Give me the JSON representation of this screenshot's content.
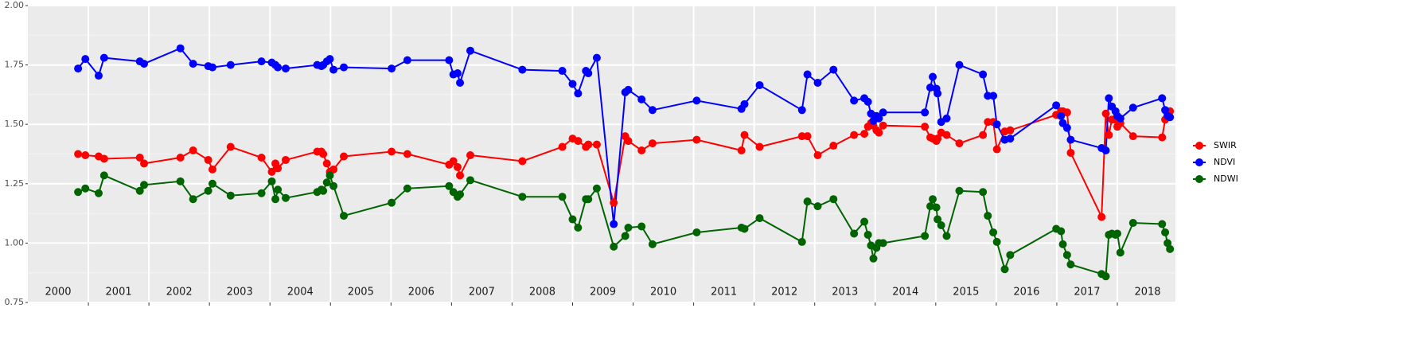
{
  "chart_data": {
    "type": "line",
    "x": [
      2000.83,
      2000.95,
      2001.17,
      2001.26,
      2001.85,
      2001.92,
      2002.52,
      2002.73,
      2002.98,
      2003.05,
      2003.35,
      2003.86,
      2004.03,
      2004.09,
      2004.13,
      2004.26,
      2004.78,
      2004.85,
      2004.88,
      2004.94,
      2004.99,
      2005.05,
      2005.22,
      2006.01,
      2006.27,
      2006.96,
      2007.03,
      2007.1,
      2007.14,
      2007.31,
      2008.17,
      2008.83,
      2009.0,
      2009.09,
      2009.22,
      2009.26,
      2009.4,
      2009.68,
      2009.87,
      2009.92,
      2010.14,
      2010.32,
      2011.05,
      2011.79,
      2011.84,
      2012.09,
      2012.79,
      2012.88,
      2013.05,
      2013.31,
      2013.65,
      2013.82,
      2013.88,
      2013.93,
      2013.97,
      2014.02,
      2014.06,
      2014.13,
      2014.82,
      2014.91,
      2014.95,
      2015.01,
      2015.03,
      2015.09,
      2015.18,
      2015.39,
      2015.78,
      2015.86,
      2015.95,
      2016.01,
      2016.14,
      2016.23,
      2016.99,
      2017.07,
      2017.1,
      2017.17,
      2017.23,
      2017.74,
      2017.81,
      2017.86,
      2017.91,
      2017.97,
      2018.0,
      2018.05,
      2018.26,
      2018.74,
      2018.79,
      2018.83,
      2018.87
    ],
    "series": [
      {
        "name": "SWIR",
        "color": "#ff0000",
        "values": [
          1.375,
          1.37,
          1.365,
          1.355,
          1.36,
          1.335,
          1.36,
          1.39,
          1.35,
          1.31,
          1.405,
          1.36,
          1.3,
          1.335,
          1.315,
          1.35,
          1.385,
          1.385,
          1.375,
          1.335,
          1.3,
          1.31,
          1.365,
          1.385,
          1.375,
          1.33,
          1.345,
          1.32,
          1.285,
          1.37,
          1.345,
          1.405,
          1.44,
          1.43,
          1.405,
          1.415,
          1.415,
          1.17,
          1.45,
          1.43,
          1.39,
          1.42,
          1.435,
          1.39,
          1.455,
          1.405,
          1.45,
          1.45,
          1.37,
          1.41,
          1.455,
          1.46,
          1.49,
          1.505,
          1.495,
          1.475,
          1.465,
          1.495,
          1.49,
          1.445,
          1.44,
          1.43,
          1.44,
          1.465,
          1.455,
          1.42,
          1.455,
          1.51,
          1.51,
          1.395,
          1.47,
          1.475,
          1.54,
          1.555,
          1.555,
          1.55,
          1.38,
          1.11,
          1.545,
          1.455,
          1.52,
          1.52,
          1.49,
          1.505,
          1.45,
          1.445,
          1.52,
          1.54,
          1.555
        ]
      },
      {
        "name": "NDVI",
        "color": "#0000ff",
        "values": [
          1.735,
          1.775,
          1.705,
          1.78,
          1.765,
          1.755,
          1.82,
          1.755,
          1.745,
          1.74,
          1.75,
          1.765,
          1.76,
          1.75,
          1.74,
          1.735,
          1.75,
          1.745,
          1.75,
          1.765,
          1.775,
          1.73,
          1.74,
          1.735,
          1.77,
          1.77,
          1.71,
          1.715,
          1.675,
          1.81,
          1.73,
          1.725,
          1.67,
          1.63,
          1.725,
          1.715,
          1.78,
          1.08,
          1.635,
          1.645,
          1.605,
          1.56,
          1.6,
          1.565,
          1.585,
          1.665,
          1.56,
          1.71,
          1.675,
          1.73,
          1.6,
          1.61,
          1.595,
          1.545,
          1.515,
          1.535,
          1.525,
          1.55,
          1.55,
          1.655,
          1.7,
          1.65,
          1.63,
          1.51,
          1.525,
          1.75,
          1.71,
          1.62,
          1.62,
          1.5,
          1.435,
          1.44,
          1.58,
          1.535,
          1.505,
          1.485,
          1.435,
          1.4,
          1.39,
          1.61,
          1.575,
          1.555,
          1.535,
          1.525,
          1.57,
          1.61,
          1.56,
          1.535,
          1.53
        ]
      },
      {
        "name": "NDWI",
        "color": "#006400",
        "values": [
          1.215,
          1.23,
          1.21,
          1.285,
          1.22,
          1.245,
          1.26,
          1.185,
          1.22,
          1.25,
          1.2,
          1.21,
          1.26,
          1.185,
          1.225,
          1.19,
          1.215,
          1.225,
          1.22,
          1.255,
          1.285,
          1.24,
          1.115,
          1.17,
          1.23,
          1.24,
          1.215,
          1.195,
          1.205,
          1.265,
          1.195,
          1.195,
          1.1,
          1.065,
          1.185,
          1.185,
          1.23,
          0.985,
          1.03,
          1.065,
          1.07,
          0.995,
          1.045,
          1.065,
          1.06,
          1.105,
          1.005,
          1.175,
          1.155,
          1.185,
          1.04,
          1.09,
          1.035,
          0.99,
          0.935,
          0.98,
          1.0,
          1.0,
          1.03,
          1.155,
          1.185,
          1.15,
          1.1,
          1.075,
          1.03,
          1.22,
          1.215,
          1.115,
          1.045,
          1.005,
          0.89,
          0.95,
          1.06,
          1.05,
          0.995,
          0.95,
          0.91,
          0.87,
          0.86,
          1.035,
          1.04,
          1.035,
          1.04,
          0.96,
          1.085,
          1.08,
          1.045,
          1.0,
          0.975
        ]
      }
    ],
    "xlim": [
      2000,
      2018.96
    ],
    "xticks": [
      2001,
      2002,
      2003,
      2004,
      2005,
      2006,
      2007,
      2008,
      2009,
      2010,
      2011,
      2012,
      2013,
      2014,
      2015,
      2016,
      2017,
      2018
    ],
    "year_labels": [
      {
        "value": 2000.5,
        "label": "2000"
      },
      {
        "value": 2001.5,
        "label": "2001"
      },
      {
        "value": 2002.5,
        "label": "2002"
      },
      {
        "value": 2003.5,
        "label": "2003"
      },
      {
        "value": 2004.5,
        "label": "2004"
      },
      {
        "value": 2005.5,
        "label": "2005"
      },
      {
        "value": 2006.5,
        "label": "2006"
      },
      {
        "value": 2007.5,
        "label": "2007"
      },
      {
        "value": 2008.5,
        "label": "2008"
      },
      {
        "value": 2009.5,
        "label": "2009"
      },
      {
        "value": 2010.5,
        "label": "2010"
      },
      {
        "value": 2011.5,
        "label": "2011"
      },
      {
        "value": 2012.5,
        "label": "2012"
      },
      {
        "value": 2013.5,
        "label": "2013"
      },
      {
        "value": 2014.5,
        "label": "2014"
      },
      {
        "value": 2015.5,
        "label": "2015"
      },
      {
        "value": 2016.5,
        "label": "2016"
      },
      {
        "value": 2017.5,
        "label": "2017"
      },
      {
        "value": 2018.5,
        "label": "2018"
      }
    ],
    "ylim": [
      0.75,
      2.0
    ],
    "yticks": [
      0.75,
      {
        "value": 1,
        "label": "1.00"
      },
      1.25,
      {
        "value": 1.5,
        "label": "1.50"
      },
      1.75,
      {
        "value": 2,
        "label": "2.00"
      }
    ],
    "y_minor_ticks": [
      0.875,
      1.125,
      1.375,
      1.625,
      1.875
    ],
    "grid": true,
    "legend": "right"
  }
}
